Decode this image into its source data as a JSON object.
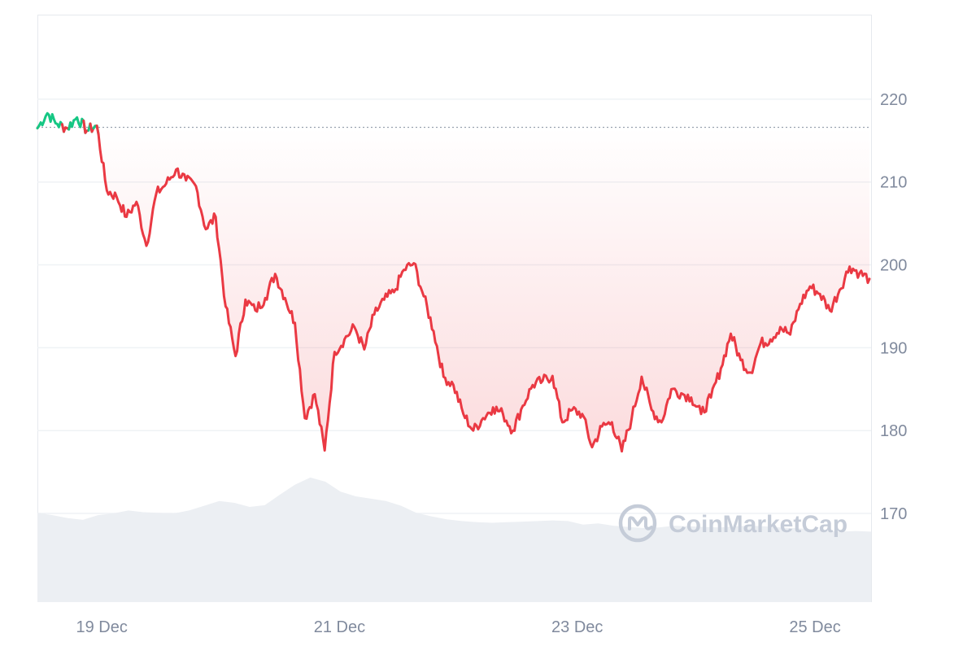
{
  "chart_data": {
    "type": "line",
    "title": "",
    "xlabel": "",
    "ylabel": "",
    "x_tick_labels": [
      "19 Dec",
      "21 Dec",
      "23 Dec",
      "25 Dec"
    ],
    "y_tick_labels": [
      "170",
      "180",
      "190",
      "200",
      "210",
      "220"
    ],
    "y_ticks": [
      170,
      180,
      190,
      200,
      210,
      220
    ],
    "ylim": [
      159.3,
      230.2
    ],
    "grid": true,
    "baseline": 216.6,
    "colors": {
      "up": "#16c784",
      "down": "#ea3943",
      "grid": "#eff2f5",
      "axis_text": "#808a9d",
      "volume": "#eceff3",
      "watermark": "#c5ccd8"
    },
    "watermark": "CoinMarketCap",
    "series": [
      {
        "x": [
          "18 Dec 11:00",
          "18 Dec 13:00",
          "18 Dec 15:00",
          "18 Dec 17:00",
          "18 Dec 19:00",
          "18 Dec 21:00",
          "18 Dec 23:00",
          "19 Dec 01:00",
          "19 Dec 03:00",
          "19 Dec 05:00",
          "19 Dec 07:00",
          "19 Dec 09:00",
          "19 Dec 11:00",
          "19 Dec 13:00",
          "19 Dec 15:00",
          "19 Dec 17:00",
          "19 Dec 19:00",
          "19 Dec 21:00",
          "19 Dec 23:00",
          "20 Dec 01:00",
          "20 Dec 03:00",
          "20 Dec 05:00",
          "20 Dec 07:00",
          "20 Dec 09:00",
          "20 Dec 11:00",
          "20 Dec 13:00",
          "20 Dec 15:00",
          "20 Dec 17:00",
          "20 Dec 19:00",
          "20 Dec 21:00",
          "20 Dec 23:00",
          "21 Dec 01:00",
          "21 Dec 03:00",
          "21 Dec 05:00",
          "21 Dec 07:00",
          "21 Dec 09:00",
          "21 Dec 11:00",
          "21 Dec 13:00",
          "21 Dec 15:00",
          "21 Dec 17:00",
          "21 Dec 19:00",
          "21 Dec 21:00",
          "21 Dec 23:00",
          "22 Dec 01:00",
          "22 Dec 03:00",
          "22 Dec 05:00",
          "22 Dec 07:00",
          "22 Dec 09:00",
          "22 Dec 11:00",
          "22 Dec 13:00",
          "22 Dec 15:00",
          "22 Dec 17:00",
          "22 Dec 19:00",
          "22 Dec 21:00",
          "22 Dec 23:00",
          "23 Dec 01:00",
          "23 Dec 03:00",
          "23 Dec 05:00",
          "23 Dec 07:00",
          "23 Dec 09:00",
          "23 Dec 11:00",
          "23 Dec 13:00",
          "23 Dec 15:00",
          "23 Dec 17:00",
          "23 Dec 19:00",
          "23 Dec 21:00",
          "23 Dec 23:00",
          "24 Dec 01:00",
          "24 Dec 03:00",
          "24 Dec 05:00",
          "24 Dec 07:00",
          "24 Dec 09:00",
          "24 Dec 11:00",
          "24 Dec 13:00",
          "24 Dec 15:00",
          "24 Dec 17:00",
          "24 Dec 19:00",
          "24 Dec 21:00",
          "24 Dec 23:00",
          "25 Dec 01:00",
          "25 Dec 03:00",
          "25 Dec 05:00",
          "25 Dec 07:00",
          "25 Dec 09:00",
          "25 Dec 11:00"
        ],
        "values": [
          216.5,
          218.3,
          217.0,
          216.5,
          217.8,
          216.2,
          216.8,
          209.0,
          208.2,
          205.8,
          207.6,
          202.3,
          208.6,
          209.8,
          211.5,
          210.2,
          209.5,
          204.3,
          205.8,
          195.0,
          189.0,
          195.8,
          194.5,
          196.0,
          198.9,
          196.0,
          193.0,
          181.5,
          184.4,
          177.6,
          189.5,
          191.0,
          192.5,
          189.8,
          194.0,
          195.8,
          196.7,
          199.4,
          200.2,
          196.2,
          192.0,
          186.5,
          185.5,
          182.0,
          180.0,
          181.5,
          182.8,
          182.0,
          180.0,
          183.0,
          185.5,
          186.0,
          186.6,
          181.0,
          182.5,
          182.0,
          178.0,
          180.5,
          181.0,
          177.5,
          181.5,
          186.5,
          182.5,
          181.0,
          185.0,
          184.5,
          184.0,
          182.0,
          184.0,
          187.5,
          191.7,
          188.5,
          187.0,
          190.5,
          191.0,
          192.5,
          191.6,
          195.3,
          197.4,
          196.5,
          194.5,
          197.0,
          199.8,
          199.0,
          198.3
        ]
      }
    ],
    "volume_series": [
      15.2,
      14.8,
      14.3,
      14.0,
      14.8,
      15.1,
      15.6,
      15.3,
      15.2,
      15.1,
      15.6,
      16.4,
      17.2,
      16.9,
      16.2,
      16.5,
      18.3,
      20.0,
      21.2,
      20.5,
      18.8,
      18.0,
      17.6,
      17.2,
      16.4,
      15.2,
      14.6,
      14.1,
      13.8,
      13.6,
      13.5,
      13.6,
      13.7,
      13.8,
      13.9,
      13.8,
      13.2,
      13.4,
      13.0,
      12.8,
      12.6,
      12.7,
      13.0,
      12.9,
      12.8,
      12.7,
      12.9,
      13.0,
      12.9,
      12.7,
      12.6,
      12.4,
      12.2,
      12.0,
      12.1,
      12.0
    ]
  }
}
